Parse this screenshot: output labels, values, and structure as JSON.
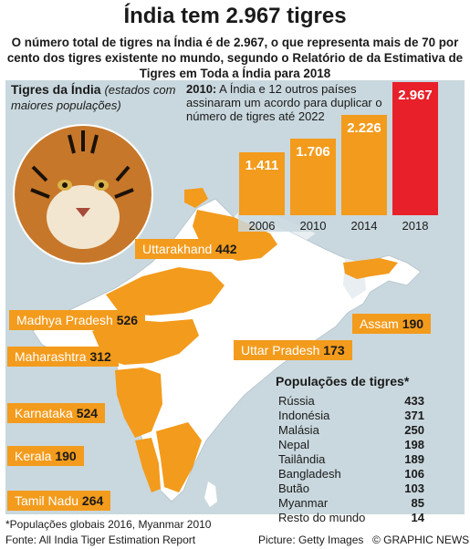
{
  "title": "Índia tem 2.967 tigres",
  "subtitle": "O número total de tigres na Índia é de 2.967, o que representa mais de 70 por cento dos tigres existente no mundo, segundo o Relatório de da Estimativa de Tigres em Toda a Índia para 2018",
  "map": {
    "title_bold": "Tigres da Índia",
    "title_italic": "(estados com maiores populações)"
  },
  "states": [
    {
      "name": "Uttarakhand",
      "value": "442"
    },
    {
      "name": "Madhya Pradesh",
      "value": "526"
    },
    {
      "name": "Maharashtra",
      "value": "312"
    },
    {
      "name": "Karnataka",
      "value": "524"
    },
    {
      "name": "Kerala",
      "value": "190"
    },
    {
      "name": "Tamil Nadu",
      "value": "264"
    },
    {
      "name": "Uttar Pradesh",
      "value": "173"
    },
    {
      "name": "Assam",
      "value": "190"
    }
  ],
  "bar_note": {
    "bold": "2010:",
    "text": " A Índia e 12 outros países assinaram um acordo para duplicar o número de tigres até 2022"
  },
  "chart_data": {
    "type": "bar",
    "categories": [
      "2006",
      "2010",
      "2014",
      "2018"
    ],
    "values": [
      1411,
      1706,
      2226,
      2967
    ],
    "value_labels": [
      "1.411",
      "1.706",
      "2.226",
      "2.967"
    ],
    "ylim": [
      0,
      2967
    ],
    "colors": [
      "#f39b1c",
      "#f39b1c",
      "#f39b1c",
      "#e8202a"
    ]
  },
  "populations": {
    "title": "Populações de tigres*",
    "rows": [
      {
        "country": "Rússia",
        "value": "433"
      },
      {
        "country": "Indonésia",
        "value": "371"
      },
      {
        "country": "Malásia",
        "value": "250"
      },
      {
        "country": "Nepal",
        "value": "198"
      },
      {
        "country": "Tailândia",
        "value": "189"
      },
      {
        "country": "Bangladesh",
        "value": "106"
      },
      {
        "country": "Butão",
        "value": "103"
      },
      {
        "country": "Myanmar",
        "value": "85"
      },
      {
        "country": "Resto do mundo",
        "value": "14"
      }
    ]
  },
  "footnotes": {
    "note": "*Populações globais 2016, Myanmar 2010",
    "source": "Fonte: All India Tiger Estimation Report",
    "picture": "Picture: Getty Images",
    "copyright": "© GRAPHIC NEWS"
  },
  "colors": {
    "background_panel": "#c9d8de",
    "land": "#ffffff",
    "highlight": "#f39b1c",
    "accent_red": "#e8202a"
  }
}
